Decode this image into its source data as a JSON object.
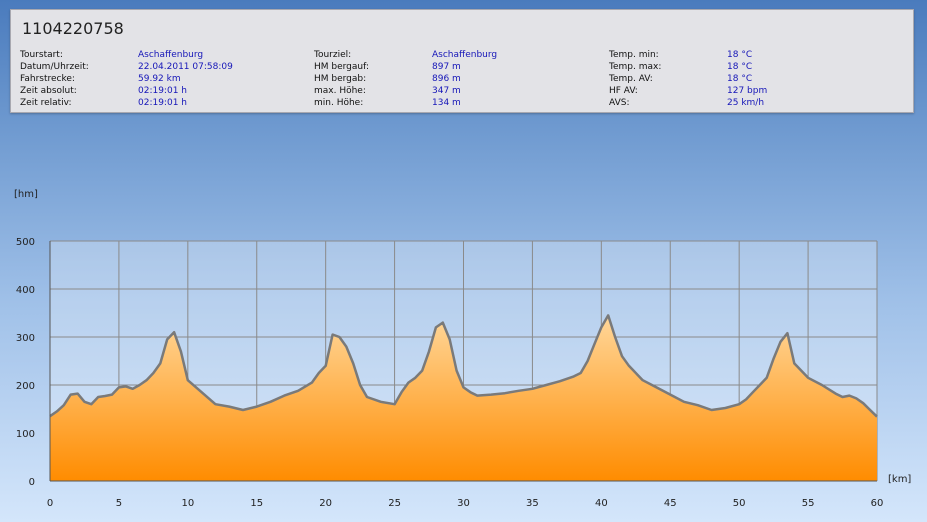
{
  "title": "1104220758",
  "info": {
    "columns": [
      [
        {
          "label": "Tourstart:",
          "value": "Aschaffenburg"
        },
        {
          "label": "Datum/Uhrzeit:",
          "value": "22.04.2011 07:58:09"
        },
        {
          "label": "Fahrstrecke:",
          "value": "59.92 km"
        },
        {
          "label": "Zeit absolut:",
          "value": "02:19:01 h"
        },
        {
          "label": "Zeit relativ:",
          "value": "02:19:01 h"
        }
      ],
      [
        {
          "label": "Tourziel:",
          "value": "Aschaffenburg"
        },
        {
          "label": "HM bergauf:",
          "value": "897 m"
        },
        {
          "label": "HM bergab:",
          "value": "896 m"
        },
        {
          "label": "max. Höhe:",
          "value": "347 m"
        },
        {
          "label": "min. Höhe:",
          "value": "134 m"
        }
      ],
      [
        {
          "label": "Temp. min:",
          "value": "18 °C"
        },
        {
          "label": "Temp. max:",
          "value": "18 °C"
        },
        {
          "label": "Temp. AV:",
          "value": "18 °C"
        },
        {
          "label": "HF AV:",
          "value": "127 bpm"
        },
        {
          "label": "AVS:",
          "value": "25 km/h"
        }
      ]
    ]
  },
  "chart_data": {
    "type": "area",
    "xlabel": "[km]",
    "ylabel": "[hm]",
    "xlim": [
      0,
      60
    ],
    "ylim": [
      0,
      500
    ],
    "xticks": [
      "0",
      "5",
      "10",
      "15",
      "20",
      "25",
      "30",
      "35",
      "40",
      "45",
      "50",
      "55",
      "60"
    ],
    "yticks": [
      "0",
      "100",
      "200",
      "300",
      "400",
      "500"
    ],
    "grid": true,
    "colors": {
      "fill_top": "#ffd79a",
      "fill_bottom": "#ff8c00",
      "line": "#7a7a7a",
      "grid": "#8a8a8a"
    },
    "x": [
      0,
      0.5,
      1,
      1.5,
      2,
      2.5,
      3,
      3.5,
      4,
      4.5,
      5,
      5.5,
      6,
      6.5,
      7,
      7.5,
      8,
      8.5,
      9,
      9.5,
      10,
      11,
      12,
      13,
      14,
      15,
      16,
      17,
      18,
      19,
      19.5,
      20,
      20.5,
      21,
      21.5,
      22,
      22.5,
      23,
      24,
      25,
      25.5,
      26,
      26.5,
      27,
      27.5,
      28,
      28.5,
      29,
      29.5,
      30,
      30.5,
      31,
      32,
      33,
      34,
      35,
      36,
      37,
      38,
      38.5,
      39,
      39.5,
      40,
      40.5,
      41,
      41.5,
      42,
      43,
      44,
      45,
      46,
      47,
      48,
      49,
      50,
      50.5,
      51,
      51.5,
      52,
      52.5,
      53,
      53.5,
      54,
      55,
      56,
      57,
      57.5,
      58,
      58.5,
      59,
      59.5,
      60
    ],
    "y": [
      135,
      145,
      158,
      180,
      182,
      165,
      160,
      175,
      177,
      180,
      195,
      197,
      192,
      200,
      210,
      225,
      245,
      295,
      310,
      270,
      210,
      185,
      160,
      155,
      148,
      155,
      165,
      178,
      188,
      205,
      225,
      240,
      305,
      300,
      280,
      245,
      200,
      175,
      165,
      160,
      185,
      205,
      215,
      230,
      270,
      320,
      330,
      295,
      230,
      195,
      185,
      178,
      180,
      183,
      188,
      192,
      200,
      208,
      218,
      225,
      250,
      285,
      320,
      345,
      300,
      260,
      240,
      210,
      195,
      180,
      165,
      158,
      148,
      152,
      160,
      170,
      185,
      200,
      215,
      255,
      290,
      308,
      245,
      215,
      200,
      182,
      175,
      178,
      172,
      162,
      148,
      134
    ]
  }
}
